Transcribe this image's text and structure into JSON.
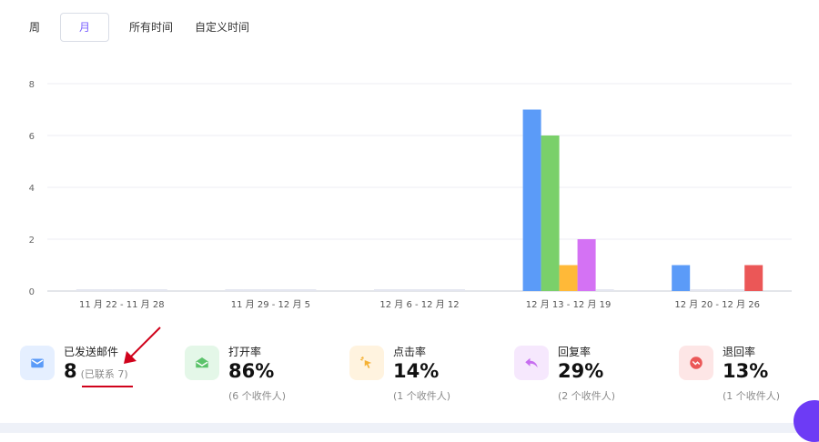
{
  "tabs": [
    {
      "label": "周",
      "active": false
    },
    {
      "label": "月",
      "active": true
    },
    {
      "label": "所有时间",
      "active": false
    },
    {
      "label": "自定义时间",
      "active": false
    }
  ],
  "chart_data": {
    "type": "bar",
    "title": "",
    "xlabel": "",
    "ylabel": "",
    "ylim": [
      0,
      8
    ],
    "yticks": [
      "0",
      "2",
      "4",
      "6",
      "8"
    ],
    "grid": true,
    "categories": [
      "11 月 22 - 11 月 28",
      "11 月 29 - 12 月 5",
      "12 月 6 - 12 月 12",
      "12 月 13 - 12 月 19",
      "12 月 20 - 12 月 26"
    ],
    "series": [
      {
        "color": "#5b9bf8",
        "values": [
          0,
          0,
          0,
          7,
          1
        ]
      },
      {
        "color": "#7ad06a",
        "values": [
          0,
          0,
          0,
          6,
          0
        ]
      },
      {
        "color": "#ffb938",
        "values": [
          0,
          0,
          0,
          1,
          0
        ]
      },
      {
        "color": "#d472f4",
        "values": [
          0,
          0,
          0,
          2,
          0
        ]
      },
      {
        "color": "#eb5757",
        "values": [
          0,
          0,
          0,
          0,
          1
        ]
      }
    ]
  },
  "stats": [
    {
      "label": "已发送邮件",
      "value": "8",
      "sub": "",
      "extra": "(已联系 7)",
      "color": "#5b9bf8",
      "bg": "#e5efff",
      "icon": "mail-icon"
    },
    {
      "label": "打开率",
      "value": "86%",
      "sub": "(6 个收件人)",
      "color": "#5cc36b",
      "bg": "#e4f7e8",
      "icon": "open-mail-icon"
    },
    {
      "label": "点击率",
      "value": "14%",
      "sub": "(1 个收件人)",
      "color": "#f5b134",
      "bg": "#fff3df",
      "icon": "cursor-click-icon"
    },
    {
      "label": "回复率",
      "value": "29%",
      "sub": "(2 个收件人)",
      "color": "#c76ef0",
      "bg": "#f6e8fd",
      "icon": "reply-icon"
    },
    {
      "label": "退回率",
      "value": "13%",
      "sub": "(1 个收件人)",
      "color": "#eb5757",
      "bg": "#fde6e6",
      "icon": "bounce-icon"
    }
  ]
}
